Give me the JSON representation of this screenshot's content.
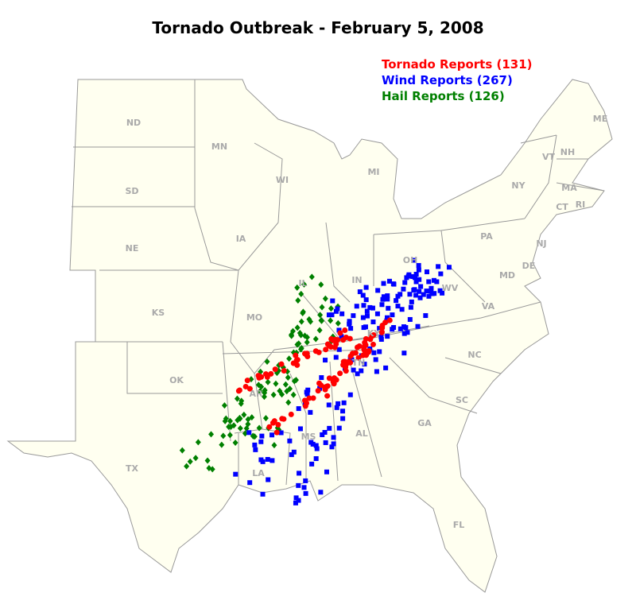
{
  "header": {
    "title": "Tornado Outbreak - February 5, 2008"
  },
  "legend": {
    "items": [
      {
        "label": "Tornado Reports (131)",
        "color": "#ff0000"
      },
      {
        "label": "Wind Reports (267)",
        "color": "#0000ff"
      },
      {
        "label": "Hail Reports (126)",
        "color": "#008000"
      }
    ]
  },
  "states": [
    "ND",
    "MN",
    "WI",
    "MI",
    "SD",
    "NE",
    "IA",
    "IL",
    "IN",
    "OH",
    "PA",
    "NY",
    "ME",
    "VT",
    "NH",
    "MA",
    "CT",
    "RI",
    "NJ",
    "DE",
    "MD",
    "KS",
    "MO",
    "KY",
    "WV",
    "VA",
    "OK",
    "AR",
    "TN",
    "NC",
    "SC",
    "TX",
    "LA",
    "MS",
    "AL",
    "GA",
    "FL"
  ]
}
